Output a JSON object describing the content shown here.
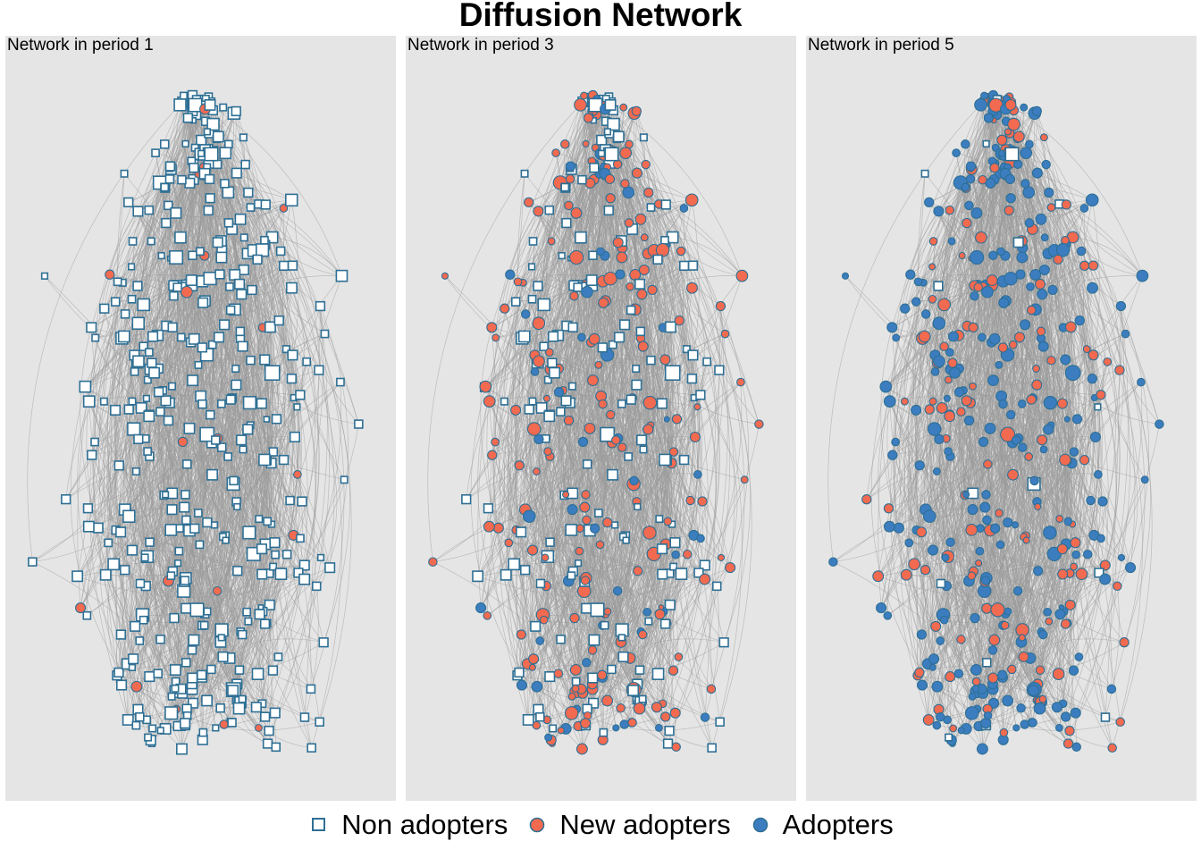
{
  "chart_data": {
    "type": "scatter",
    "title": "Diffusion Network",
    "panels": [
      {
        "label": "Network in period 1",
        "period": 1,
        "share_new": 0.04,
        "share_adopters": 0.0
      },
      {
        "label": "Network in period 3",
        "period": 3,
        "share_new": 0.45,
        "share_adopters": 0.12
      },
      {
        "label": "Network in period 5",
        "period": 5,
        "share_new": 0.38,
        "share_adopters": 0.62
      }
    ],
    "legend": [
      {
        "key": "non",
        "label": "Non adopters",
        "shape": "square",
        "fill": "#ffffff",
        "stroke": "#2e6f94"
      },
      {
        "key": "new",
        "label": "New adopters",
        "shape": "circle",
        "fill": "#f26a50",
        "stroke": "#2e6f94"
      },
      {
        "key": "adopt",
        "label": "Adopters",
        "shape": "circle",
        "fill": "#3b7dbf",
        "stroke": "#2e6f94"
      }
    ],
    "colors": {
      "panel_bg": "#e5e5e5",
      "edge": "#9a9a9a",
      "node_stroke": "#2e6f94"
    },
    "node_count": 450,
    "edge_count": 1350
  }
}
